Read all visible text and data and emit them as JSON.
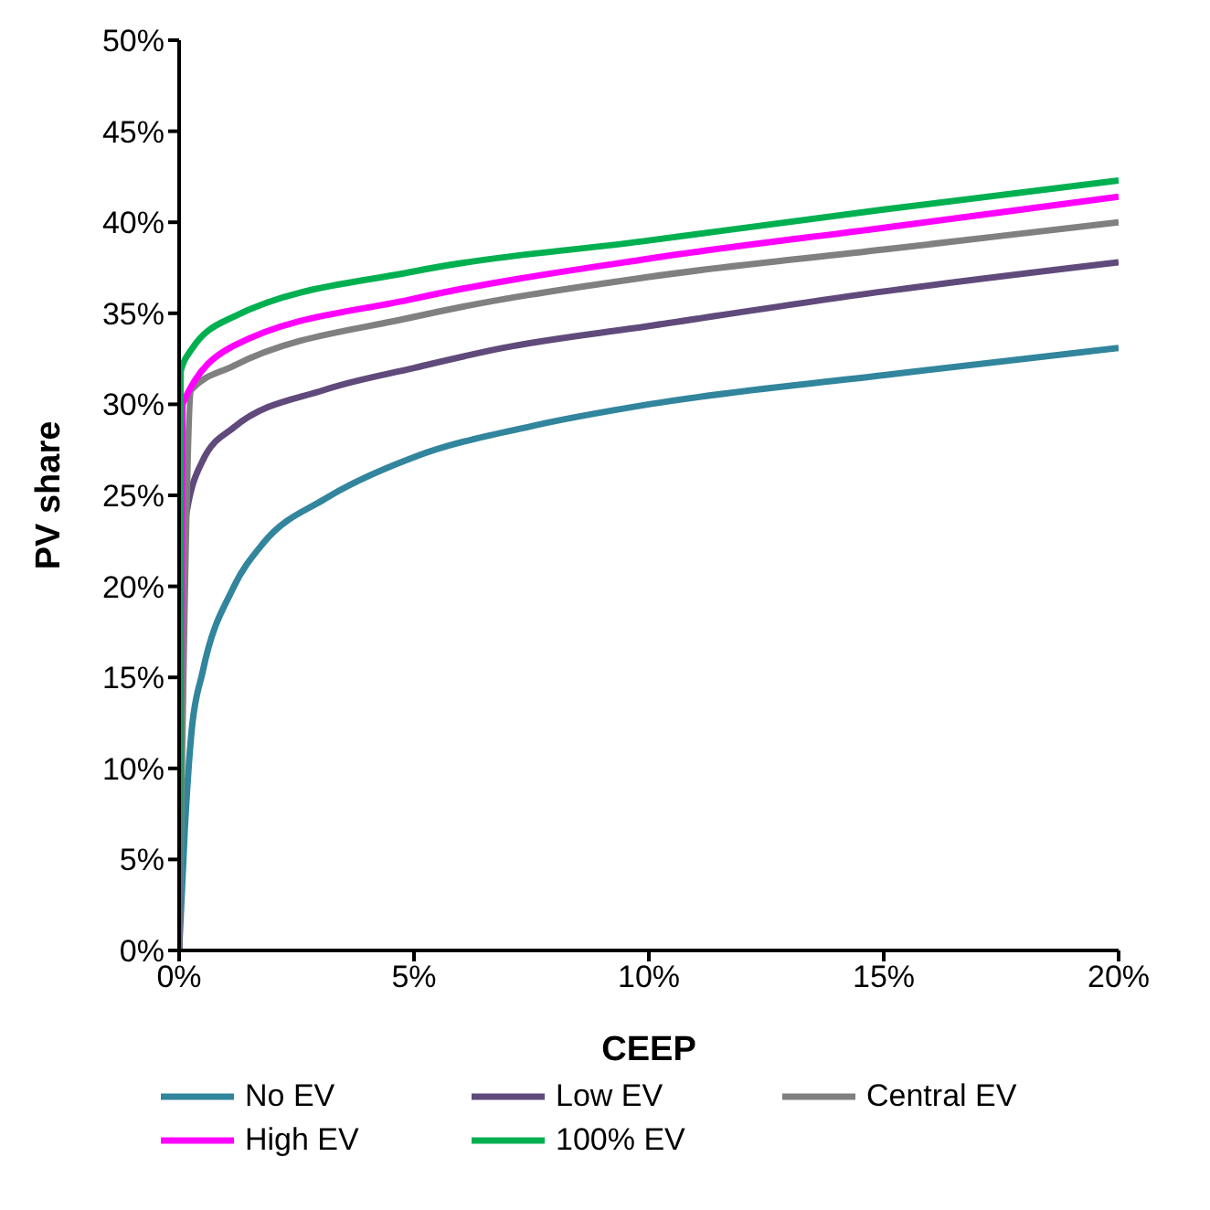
{
  "chart_data": {
    "type": "line",
    "xlabel": "CEEP",
    "ylabel": "PV share",
    "xlim": [
      0,
      20
    ],
    "xticks": [
      {
        "value": 0,
        "label": "0%"
      },
      {
        "value": 5,
        "label": "5%"
      },
      {
        "value": 10,
        "label": "10%"
      },
      {
        "value": 15,
        "label": "15%"
      },
      {
        "value": 20,
        "label": "20%"
      }
    ],
    "ylim": [
      0,
      50
    ],
    "yticks": [
      {
        "value": 0,
        "label": "0%"
      },
      {
        "value": 5,
        "label": "5%"
      },
      {
        "value": 10,
        "label": "10%"
      },
      {
        "value": 15,
        "label": "15%"
      },
      {
        "value": 20,
        "label": "20%"
      },
      {
        "value": 25,
        "label": "25%"
      },
      {
        "value": 30,
        "label": "30%"
      },
      {
        "value": 35,
        "label": "35%"
      },
      {
        "value": 40,
        "label": "40%"
      },
      {
        "value": 45,
        "label": "45%"
      },
      {
        "value": 50,
        "label": "50%"
      }
    ],
    "grid": false,
    "legend": "bottom",
    "marker": "none",
    "line_style": "solid",
    "series": [
      {
        "name": "No EV",
        "color": "#31859c",
        "x": [
          0,
          0.12,
          0.26,
          0.5,
          1.15,
          1.8,
          3.1,
          5,
          7.5,
          10,
          15,
          20
        ],
        "values": [
          0,
          6.6,
          11.9,
          15.3,
          19.9,
          22.4,
          24.8,
          27.1,
          28.8,
          30,
          31.6,
          33.1
        ]
      },
      {
        "name": "Low EV",
        "color": "#604a7b",
        "x": [
          0,
          0.03,
          0.12,
          0.5,
          1.15,
          3.1,
          5,
          6.9,
          10,
          15,
          20
        ],
        "values": [
          0,
          19.9,
          23.4,
          26.9,
          28.7,
          30.8,
          32,
          33.1,
          34.3,
          36.2,
          37.8
        ]
      },
      {
        "name": "Central EV",
        "color": "#808080",
        "x": [
          0,
          0.26,
          1.15,
          5,
          10,
          15,
          20
        ],
        "values": [
          0,
          30.8,
          32.1,
          34.8,
          37,
          38.5,
          40
        ]
      },
      {
        "name": "High EV",
        "color": "#ff00ff",
        "x": [
          0,
          0.07,
          1.15,
          5,
          10,
          15,
          20
        ],
        "values": [
          0,
          30,
          33.2,
          35.8,
          38,
          39.7,
          41.4
        ]
      },
      {
        "name": "100% EV",
        "color": "#00b050",
        "x": [
          0,
          0.03,
          0.26,
          1.15,
          5,
          10,
          15,
          20
        ],
        "values": [
          0,
          31.8,
          33,
          34.8,
          37.3,
          39,
          40.7,
          42.3
        ]
      }
    ]
  }
}
